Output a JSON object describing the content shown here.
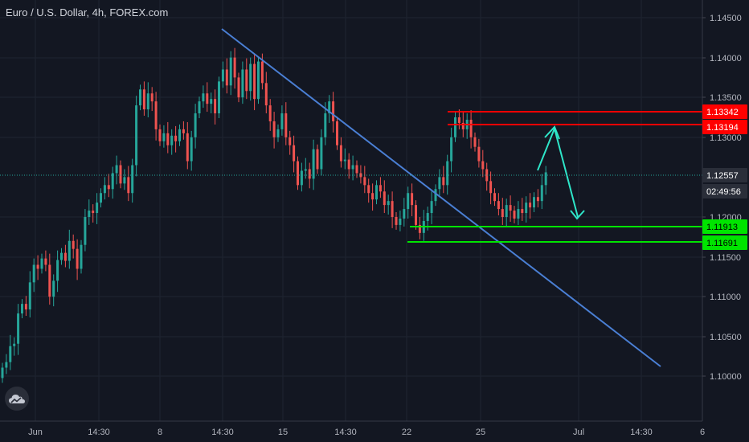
{
  "header": {
    "title": "Euro / U.S. Dollar, 4h, FOREX.com"
  },
  "logo": {
    "icon": "tradingview-cloud-icon"
  },
  "colors": {
    "background": "#131722",
    "grid": "#1f2431",
    "axis_text": "#b2b5be",
    "up": "#26a69a",
    "down": "#ef5350",
    "trendline": "#4a7fd4",
    "resistance": "#ff0000",
    "support": "#00e400",
    "projection": "#2ee6c9",
    "price_label_bg": "#2a2e39",
    "current_price_line": "#26a69a"
  },
  "chart_data": {
    "type": "candlestick",
    "symbol": "Euro / U.S. Dollar",
    "timeframe": "4h",
    "source": "FOREX.com",
    "ylim": [
      1.0965,
      1.1485
    ],
    "y_ticks": [
      "1.14500",
      "1.14000",
      "1.13500",
      "1.13000",
      "1.12000",
      "1.11500",
      "1.11000",
      "1.10500",
      "1.10000"
    ],
    "x_ticks": [
      "Jun",
      "14:30",
      "8",
      "14:30",
      "15",
      "14:30",
      "22",
      "25",
      "Jul",
      "14:30",
      "6"
    ],
    "grid": true,
    "current_price": "1.12557",
    "countdown": "02:49:56",
    "resistance_levels": [
      "1.13342",
      "1.13194"
    ],
    "support_levels": [
      "1.11913",
      "1.11691"
    ],
    "candles_close": [
      1.1011,
      1.1018,
      1.1038,
      1.1041,
      1.1079,
      1.1091,
      1.1084,
      1.1118,
      1.114,
      1.1135,
      1.1148,
      1.114,
      1.11,
      1.112,
      1.1146,
      1.1155,
      1.1145,
      1.117,
      1.116,
      1.1135,
      1.1165,
      1.12,
      1.1208,
      1.1205,
      1.1218,
      1.123,
      1.124,
      1.1235,
      1.1255,
      1.1265,
      1.1242,
      1.125,
      1.123,
      1.1265,
      1.134,
      1.136,
      1.1335,
      1.1355,
      1.1345,
      1.131,
      1.1295,
      1.1305,
      1.129,
      1.1302,
      1.1295,
      1.131,
      1.1305,
      1.127,
      1.13,
      1.133,
      1.1345,
      1.1355,
      1.1342,
      1.1348,
      1.133,
      1.137,
      1.1385,
      1.1365,
      1.14,
      1.1375,
      1.135,
      1.1385,
      1.1358,
      1.1392,
      1.1348,
      1.1395,
      1.1368,
      1.134,
      1.132,
      1.13,
      1.131,
      1.133,
      1.13,
      1.129,
      1.127,
      1.124,
      1.1258,
      1.126,
      1.1248,
      1.1285,
      1.126,
      1.13,
      1.133,
      1.1345,
      1.132,
      1.129,
      1.127,
      1.1272,
      1.126,
      1.1265,
      1.1255,
      1.125,
      1.124,
      1.123,
      1.1222,
      1.124,
      1.1232,
      1.1215,
      1.122,
      1.12,
      1.119,
      1.1198,
      1.121,
      1.123,
      1.1215,
      1.119,
      1.118,
      1.1195,
      1.1205,
      1.122,
      1.1235,
      1.125,
      1.124,
      1.127,
      1.13,
      1.1325,
      1.1318,
      1.131,
      1.1322,
      1.13,
      1.1288,
      1.127,
      1.126,
      1.1245,
      1.123,
      1.122,
      1.121,
      1.12,
      1.1215,
      1.1208,
      1.1198,
      1.121,
      1.1205,
      1.1218,
      1.1212,
      1.1225,
      1.122,
      1.124,
      1.1256
    ]
  }
}
